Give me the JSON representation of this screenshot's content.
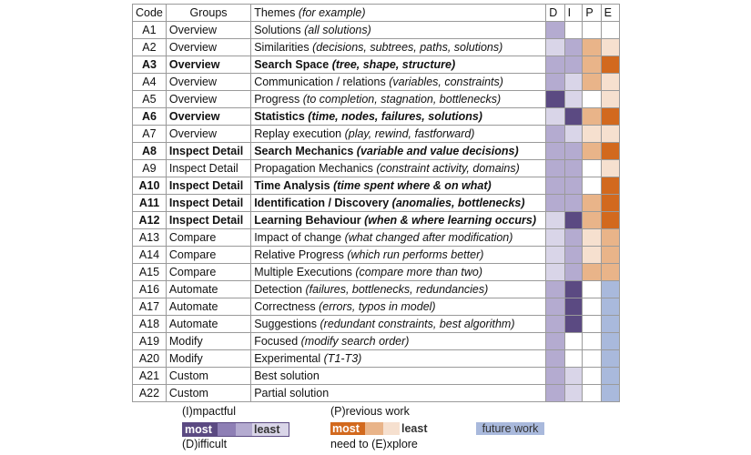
{
  "header": {
    "code": "Code",
    "groups": "Groups",
    "themes": "Themes",
    "themes_note": "(for example)",
    "d": "D",
    "i": "I",
    "p": "P",
    "e": "E"
  },
  "colors": {
    "purple_1": "#5b4a82",
    "purple_2": "#8e7fb5",
    "purple_3": "#b4abd0",
    "purple_4": "#d9d5e8",
    "orange_1": "#d2691e",
    "orange_2": "#e9b489",
    "orange_3": "#f6e0cf",
    "blue": "#a9b9dc",
    "white": "#ffffff"
  },
  "rows": [
    {
      "code": "A1",
      "group": "Overview",
      "theme": "Solutions",
      "ex": "(all solutions)",
      "bold": false,
      "d": "purple_3",
      "i": "white",
      "p": "white",
      "e": "white"
    },
    {
      "code": "A2",
      "group": "Overview",
      "theme": "Similarities",
      "ex": "(decisions, subtrees, paths, solutions)",
      "bold": false,
      "d": "purple_4",
      "i": "purple_3",
      "p": "orange_2",
      "e": "orange_3"
    },
    {
      "code": "A3",
      "group": "Overview",
      "theme": "Search Space",
      "ex": "(tree, shape, structure)",
      "bold": true,
      "d": "purple_3",
      "i": "purple_3",
      "p": "orange_2",
      "e": "orange_1"
    },
    {
      "code": "A4",
      "group": "Overview",
      "theme": "Communication / relations",
      "ex": "(variables, constraints)",
      "bold": false,
      "d": "purple_3",
      "i": "purple_4",
      "p": "orange_2",
      "e": "orange_3"
    },
    {
      "code": "A5",
      "group": "Overview",
      "theme": "Progress",
      "ex": "(to completion, stagnation, bottlenecks)",
      "bold": false,
      "d": "purple_1",
      "i": "purple_4",
      "p": "white",
      "e": "orange_3"
    },
    {
      "code": "A6",
      "group": "Overview",
      "theme": "Statistics",
      "ex": "(time, nodes, failures, solutions)",
      "bold": true,
      "d": "purple_4",
      "i": "purple_1",
      "p": "orange_2",
      "e": "orange_1"
    },
    {
      "code": "A7",
      "group": "Overview",
      "theme": "Replay execution",
      "ex": "(play, rewind, fastforward)",
      "bold": false,
      "d": "purple_3",
      "i": "purple_4",
      "p": "orange_3",
      "e": "orange_3"
    },
    {
      "code": "A8",
      "group": "Inspect Detail",
      "theme": "Search Mechanics",
      "ex": "(variable and value decisions)",
      "bold": true,
      "d": "purple_3",
      "i": "purple_3",
      "p": "orange_2",
      "e": "orange_1"
    },
    {
      "code": "A9",
      "group": "Inspect Detail",
      "theme": "Propagation Mechanics",
      "ex": "(constraint activity, domains)",
      "bold": false,
      "d": "purple_3",
      "i": "purple_3",
      "p": "white",
      "e": "orange_3"
    },
    {
      "code": "A10",
      "group": "Inspect Detail",
      "theme": "Time Analysis",
      "ex": "(time spent where & on what)",
      "bold": true,
      "d": "purple_3",
      "i": "purple_3",
      "p": "white",
      "e": "orange_1"
    },
    {
      "code": "A11",
      "group": "Inspect Detail",
      "theme": "Identification / Discovery",
      "ex": "(anomalies, bottlenecks)",
      "bold": true,
      "d": "purple_3",
      "i": "purple_3",
      "p": "orange_2",
      "e": "orange_1"
    },
    {
      "code": "A12",
      "group": "Inspect Detail",
      "theme": "Learning Behaviour",
      "ex": "(when & where learning occurs)",
      "bold": true,
      "d": "purple_4",
      "i": "purple_1",
      "p": "orange_2",
      "e": "orange_1"
    },
    {
      "code": "A13",
      "group": "Compare",
      "theme": "Impact of change",
      "ex": "(what changed after modification)",
      "bold": false,
      "d": "purple_4",
      "i": "purple_3",
      "p": "orange_3",
      "e": "orange_2"
    },
    {
      "code": "A14",
      "group": "Compare",
      "theme": "Relative Progress",
      "ex": "(which run performs better)",
      "bold": false,
      "d": "purple_4",
      "i": "purple_3",
      "p": "orange_3",
      "e": "orange_2"
    },
    {
      "code": "A15",
      "group": "Compare",
      "theme": "Multiple Executions",
      "ex": "(compare more than two)",
      "bold": false,
      "d": "purple_4",
      "i": "purple_3",
      "p": "orange_2",
      "e": "orange_2"
    },
    {
      "code": "A16",
      "group": "Automate",
      "theme": "Detection",
      "ex": "(failures, bottlenecks, redundancies)",
      "bold": false,
      "d": "purple_3",
      "i": "purple_1",
      "p": "white",
      "e": "blue"
    },
    {
      "code": "A17",
      "group": "Automate",
      "theme": "Correctness",
      "ex": "(errors, typos in model)",
      "bold": false,
      "d": "purple_3",
      "i": "purple_1",
      "p": "white",
      "e": "blue"
    },
    {
      "code": "A18",
      "group": "Automate",
      "theme": "Suggestions",
      "ex": "(redundant constraints, best algorithm)",
      "bold": false,
      "d": "purple_3",
      "i": "purple_1",
      "p": "white",
      "e": "blue"
    },
    {
      "code": "A19",
      "group": "Modify",
      "theme": "Focused",
      "ex": "(modify search order)",
      "bold": false,
      "d": "purple_3",
      "i": "white",
      "p": "white",
      "e": "blue"
    },
    {
      "code": "A20",
      "group": "Modify",
      "theme": "Experimental",
      "ex": "(T1-T3)",
      "bold": false,
      "d": "purple_3",
      "i": "white",
      "p": "white",
      "e": "blue"
    },
    {
      "code": "A21",
      "group": "Custom",
      "theme": "Best solution",
      "ex": "",
      "bold": false,
      "d": "purple_3",
      "i": "purple_4",
      "p": "white",
      "e": "blue"
    },
    {
      "code": "A22",
      "group": "Custom",
      "theme": "Partial solution",
      "ex": "",
      "bold": false,
      "d": "purple_3",
      "i": "purple_4",
      "p": "white",
      "e": "blue"
    }
  ],
  "legend": {
    "impactful": "(I)mpactful",
    "difficult": "(D)ifficult",
    "previous": "(P)revious work",
    "explore": "need to (E)xplore",
    "most": "most",
    "least": "least",
    "future": "future work"
  }
}
